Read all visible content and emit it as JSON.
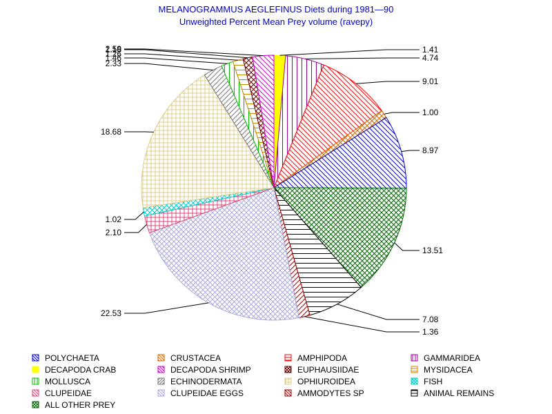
{
  "chart_data": {
    "type": "pie",
    "title": "MELANOGRAMMUS AEGLEFINUS Diets during 1981—90",
    "subtitle": "Unweighted Percent Mean Prey volume (ravepy)",
    "legend_position": "bottom",
    "slices": [
      {
        "name": "DECAPODA CRAB",
        "value": 1.41,
        "label": "1.41",
        "color": "#ffff00",
        "pattern": "solid"
      },
      {
        "name": "GAMMARIDEA",
        "value": 4.74,
        "label": "4.74",
        "color": "#990099",
        "pattern": "vert"
      },
      {
        "name": "AMPHIPODA",
        "value": 9.01,
        "label": "9.01",
        "color": "#ff0000",
        "pattern": "diagdown"
      },
      {
        "name": "CRUSTACEA",
        "value": 1.0,
        "label": "1.00",
        "color": "#cc6600",
        "pattern": "cross-diag"
      },
      {
        "name": "POLYCHAETA",
        "value": 8.97,
        "label": "8.97",
        "color": "#0000cc",
        "pattern": "diagdown"
      },
      {
        "name": "ALL OTHER PREY",
        "value": 13.51,
        "label": "13.51",
        "color": "#006600",
        "pattern": "cross-diag"
      },
      {
        "name": "ANIMAL REMAINS",
        "value": 7.08,
        "label": "7.08",
        "color": "#000000",
        "pattern": "horiz"
      },
      {
        "name": "AMMODYTES SP",
        "value": 1.36,
        "label": "1.36",
        "color": "#990000",
        "pattern": "diagup"
      },
      {
        "name": "CLUPEIDAE EGGS",
        "value": 22.53,
        "label": "22.53",
        "color": "#aaaadd",
        "pattern": "cross-diag"
      },
      {
        "name": "CLUPEIDAE",
        "value": 2.1,
        "label": "2.10",
        "color": "#dd4477",
        "pattern": "grid"
      },
      {
        "name": "FISH",
        "value": 1.02,
        "label": "1.02",
        "color": "#00cccc",
        "pattern": "cross-diag"
      },
      {
        "name": "OPHIUROIDEA",
        "value": 18.68,
        "label": "18.68",
        "color": "#ddcc88",
        "pattern": "grid"
      },
      {
        "name": "ECHINODERMATA",
        "value": 2.33,
        "label": "2.33",
        "color": "#777777",
        "pattern": "diagup"
      },
      {
        "name": "MOLLUSCA",
        "value": 1.46,
        "label": "1.46",
        "color": "#00bb00",
        "pattern": "vert"
      },
      {
        "name": "MYSIDACEA",
        "value": 1.26,
        "label": "1.26",
        "color": "#cc8800",
        "pattern": "horiz"
      },
      {
        "name": "EUPHAUSIIDAE",
        "value": 1.16,
        "label": "1.16",
        "color": "#660000",
        "pattern": "cross-diag"
      },
      {
        "name": "DECAPODA SHRIMP",
        "value": 2.59,
        "label": "2.59",
        "color": "#cc00cc",
        "pattern": "diagdown"
      }
    ],
    "legend": [
      {
        "name": "POLYCHAETA",
        "color": "#0000cc",
        "pattern": "diagdown"
      },
      {
        "name": "CRUSTACEA",
        "color": "#cc6600",
        "pattern": "diagdown"
      },
      {
        "name": "AMPHIPODA",
        "color": "#ff0000",
        "pattern": "horiz"
      },
      {
        "name": "GAMMARIDEA",
        "color": "#990099",
        "pattern": "vert"
      },
      {
        "name": "DECAPODA CRAB",
        "color": "#ffff00",
        "pattern": "solid"
      },
      {
        "name": "DECAPODA SHRIMP",
        "color": "#cc00cc",
        "pattern": "diagdown"
      },
      {
        "name": "EUPHAUSIIDAE",
        "color": "#660000",
        "pattern": "cross-diag"
      },
      {
        "name": "MYSIDACEA",
        "color": "#cc8800",
        "pattern": "horiz"
      },
      {
        "name": "MOLLUSCA",
        "color": "#00bb00",
        "pattern": "vert"
      },
      {
        "name": "ECHINODERMATA",
        "color": "#777777",
        "pattern": "diagup"
      },
      {
        "name": "OPHIUROIDEA",
        "color": "#ddcc88",
        "pattern": "grid"
      },
      {
        "name": "FISH",
        "color": "#00cccc",
        "pattern": "cross-diag"
      },
      {
        "name": "CLUPEIDAE",
        "color": "#dd4477",
        "pattern": "diagdown"
      },
      {
        "name": "CLUPEIDAE EGGS",
        "color": "#aaaadd",
        "pattern": "diagdown"
      },
      {
        "name": "AMMODYTES SP",
        "color": "#990000",
        "pattern": "diagdown"
      },
      {
        "name": "ANIMAL REMAINS",
        "color": "#000000",
        "pattern": "horiz"
      },
      {
        "name": "ALL OTHER PREY",
        "color": "#006600",
        "pattern": "cross-diag"
      }
    ]
  }
}
